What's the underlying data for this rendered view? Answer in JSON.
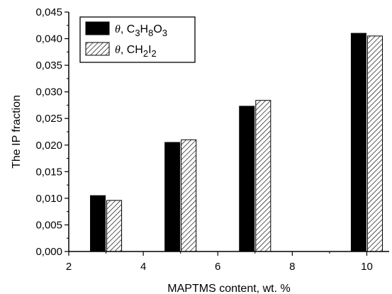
{
  "chart_data": {
    "type": "bar",
    "xlabel": "MAPTMS content, wt. %",
    "ylabel": "The IP fraction",
    "xlim": [
      2,
      10.6
    ],
    "ylim": [
      0,
      0.045
    ],
    "xticks": [
      2,
      4,
      6,
      8,
      10
    ],
    "xtick_labels": [
      "2",
      "4",
      "6",
      "8",
      "10"
    ],
    "yticks": [
      0,
      0.005,
      0.01,
      0.015,
      0.02,
      0.025,
      0.03,
      0.035,
      0.04,
      0.045
    ],
    "ytick_labels": [
      "0,000",
      "0,005",
      "0,010",
      "0,015",
      "0,020",
      "0,025",
      "0,030",
      "0,035",
      "0,040",
      "0,045"
    ],
    "x": [
      3,
      5,
      7,
      10
    ],
    "bar_width": 0.4,
    "legend_position": "top-left",
    "grid": false,
    "series": [
      {
        "name": "θ, C3H8O3",
        "legend": {
          "prefix": "θ",
          "sep": ", ",
          "parts": [
            [
              "C",
              false
            ],
            [
              "3",
              true
            ],
            [
              "H",
              false
            ],
            [
              "8",
              true
            ],
            [
              "O",
              false
            ],
            [
              "3",
              true
            ]
          ]
        },
        "fill": "solid",
        "color": "#000000",
        "values": [
          0.0105,
          0.0205,
          0.0273,
          0.041
        ]
      },
      {
        "name": "θ, CH2I2",
        "legend": {
          "prefix": "θ",
          "sep": ", ",
          "parts": [
            [
              "CH",
              false
            ],
            [
              "2",
              true
            ],
            [
              "I",
              false
            ],
            [
              "2",
              true
            ]
          ]
        },
        "fill": "diagonal-hatch",
        "color": "#000000",
        "values": [
          0.0096,
          0.021,
          0.0284,
          0.0405
        ]
      }
    ]
  }
}
